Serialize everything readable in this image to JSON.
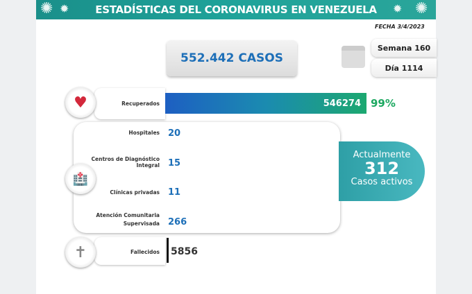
{
  "header": {
    "title": "ESTADÍSTICAS DEL CORONAVIRUS EN VENEZUELA",
    "date": "FECHA 3/4/2023"
  },
  "total_cases": "552.442 CASOS",
  "week": "Semana 160",
  "day": "Día 1114",
  "recovered": {
    "label": "Recuperados",
    "value": "546274",
    "percent": "99%",
    "bar_fill_percent": 99
  },
  "facilities": [
    {
      "label": "Hospitales",
      "value": "20"
    },
    {
      "label": "Centros de Diagnóstico Integral",
      "value": "15"
    },
    {
      "label": "Clínicas privadas",
      "value": "11"
    },
    {
      "label": "Atención Comunitaria Supervisada",
      "value": "266"
    }
  ],
  "active": {
    "prefix": "Actualmente",
    "value": "312",
    "suffix": "Casos activos"
  },
  "deaths": {
    "label": "Fallecidos",
    "value": "5856"
  },
  "colors": {
    "banner": "#1fa39a",
    "blue_text": "#1d6fb8",
    "green": "#1ca860",
    "active_box": "#3aabb3"
  }
}
